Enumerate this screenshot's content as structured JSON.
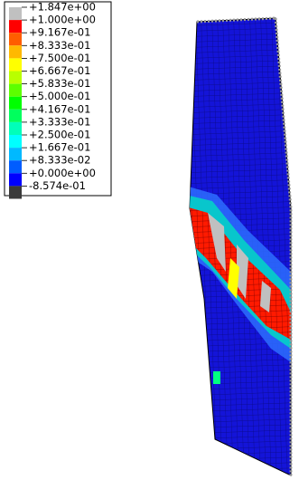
{
  "legend": {
    "labels": [
      "+1.847e+00",
      "+1.000e+00",
      "+9.167e-01",
      "+8.333e-01",
      "+7.500e-01",
      "+6.667e-01",
      "+5.833e-01",
      "+5.000e-01",
      "+4.167e-01",
      "+3.333e-01",
      "+2.500e-01",
      "+1.667e-01",
      "+8.333e-02",
      "+0.000e+00",
      "-8.574e-01"
    ],
    "colors": [
      "#c0c0c0",
      "#ff0000",
      "#ff5d00",
      "#ffb900",
      "#ffff00",
      "#b9ff00",
      "#5dff00",
      "#00ff00",
      "#00ff5d",
      "#00ffb9",
      "#00ffff",
      "#00b9ff",
      "#005dff",
      "#0000ff",
      "#3a3a3a"
    ]
  }
}
